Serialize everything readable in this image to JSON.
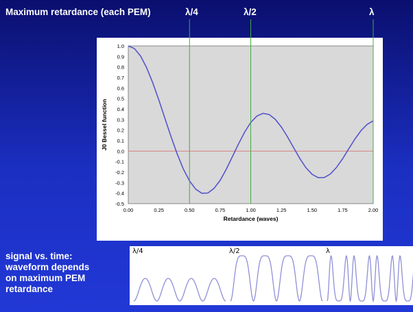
{
  "slide_title": "Maximum retardance (each PEM)",
  "top_markers": [
    "λ/4",
    "λ/2",
    "λ"
  ],
  "side_text": [
    "signal vs. time:",
    "waveform depends",
    "on maximum PEM",
    "retardance"
  ],
  "wave_panels": [
    {
      "label": "λ/4"
    },
    {
      "label": "λ/2"
    },
    {
      "label": "λ"
    }
  ],
  "colors": {
    "curve": "#5555cc",
    "zero_line": "#d98080",
    "marker_line": "#44aa44",
    "plot_bg": "#d9d9d9",
    "wave": "#8f8fd8"
  },
  "chart_data": {
    "type": "line",
    "title": "",
    "xlabel": "Retardance (waves)",
    "ylabel": "J0 Bessel function",
    "xlim": [
      0,
      2
    ],
    "ylim": [
      -0.5,
      1.0
    ],
    "x_ticks": [
      "0.00",
      "0.25",
      "0.50",
      "0.75",
      "1.00",
      "1.25",
      "1.50",
      "1.75",
      "2.00"
    ],
    "y_ticks": [
      "1.0",
      "0.9",
      "0.8",
      "0.7",
      "0.6",
      "0.5",
      "0.4",
      "0.3",
      "0.2",
      "0.1",
      "0.0",
      "-0.1",
      "-0.2",
      "-0.3",
      "-0.4",
      "-0.5"
    ],
    "grid": false,
    "reference_lines": {
      "horizontal_y": 0,
      "vertical_x": [
        0.5,
        1.0,
        2.0
      ]
    },
    "series": [
      {
        "x": [
          0,
          0.05,
          0.1,
          0.15,
          0.2,
          0.25,
          0.3,
          0.35,
          0.4,
          0.45,
          0.5,
          0.55,
          0.6,
          0.65,
          0.7,
          0.75,
          0.8,
          0.85,
          0.9,
          0.95,
          1.0,
          1.05,
          1.1,
          1.15,
          1.2,
          1.25,
          1.3,
          1.35,
          1.4,
          1.45,
          1.5,
          1.55,
          1.6,
          1.65,
          1.7,
          1.75,
          1.8,
          1.85,
          1.9,
          1.95,
          2.0
        ],
        "y": [
          1.0,
          0.975,
          0.904,
          0.792,
          0.649,
          0.485,
          0.309,
          0.133,
          -0.029,
          -0.171,
          -0.284,
          -0.362,
          -0.401,
          -0.399,
          -0.355,
          -0.278,
          -0.173,
          -0.053,
          0.069,
          0.181,
          0.272,
          0.333,
          0.359,
          0.348,
          0.302,
          0.229,
          0.135,
          0.032,
          -0.069,
          -0.157,
          -0.22,
          -0.253,
          -0.252,
          -0.218,
          -0.156,
          -0.073,
          0.021,
          0.113,
          0.194,
          0.254,
          0.288
        ]
      }
    ]
  }
}
